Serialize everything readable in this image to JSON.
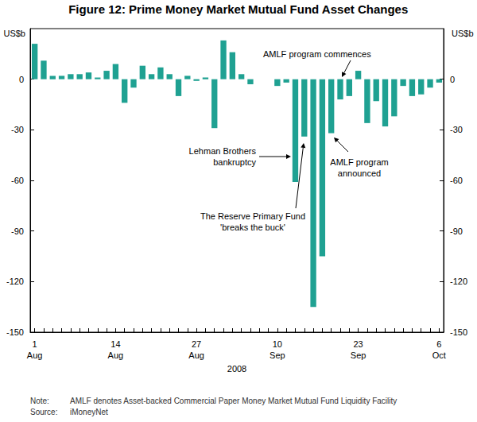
{
  "chart_data": {
    "type": "bar",
    "title": "Figure 12: Prime Money Market Mutual Fund Asset Changes",
    "x_label": "2008",
    "y_label": "US$b",
    "y2_label": "US$b",
    "categories": [
      "1\nAug",
      null,
      null,
      null,
      null,
      null,
      null,
      null,
      null,
      "14\nAug",
      null,
      null,
      null,
      null,
      null,
      null,
      null,
      null,
      "27\nAug",
      null,
      null,
      null,
      null,
      null,
      null,
      null,
      null,
      "10\nSep",
      null,
      null,
      null,
      null,
      null,
      null,
      null,
      null,
      "23\nSep",
      null,
      null,
      null,
      null,
      null,
      null,
      null,
      null,
      "6\nOct"
    ],
    "values": [
      21,
      11,
      2,
      2,
      3,
      3,
      4,
      1,
      5,
      9,
      -14,
      -5,
      8,
      3,
      7,
      3,
      -10,
      2,
      -1,
      1,
      -29,
      23,
      16,
      3,
      -3,
      0,
      0,
      -4,
      -2,
      -61,
      -34,
      -135,
      -105,
      -32,
      -12,
      -10,
      5,
      -26,
      -13,
      -28,
      -22,
      -4,
      -10,
      -9,
      -5,
      -2
    ],
    "color": "#1fa192",
    "ylim": [
      -150,
      30
    ],
    "yticks": [
      -150,
      -120,
      -90,
      -60,
      -30,
      0
    ],
    "y2lim": [
      -150,
      30
    ],
    "y2ticks": [
      -150,
      -120,
      -90,
      -60,
      -30,
      0
    ],
    "grid": false,
    "annotations": [
      "Lehman Brothers\nbankruptcy",
      "The Reserve Primary Fund\n'breaks the buck'",
      "AMLF program commences",
      "AMLF program\nannounced"
    ],
    "note_label": "Note:",
    "note": "AMLF denotes Asset-backed Commercial Paper Money Market Mutual Fund Liquidity Facility",
    "source_label": "Source:",
    "source": "iMoneyNet"
  }
}
